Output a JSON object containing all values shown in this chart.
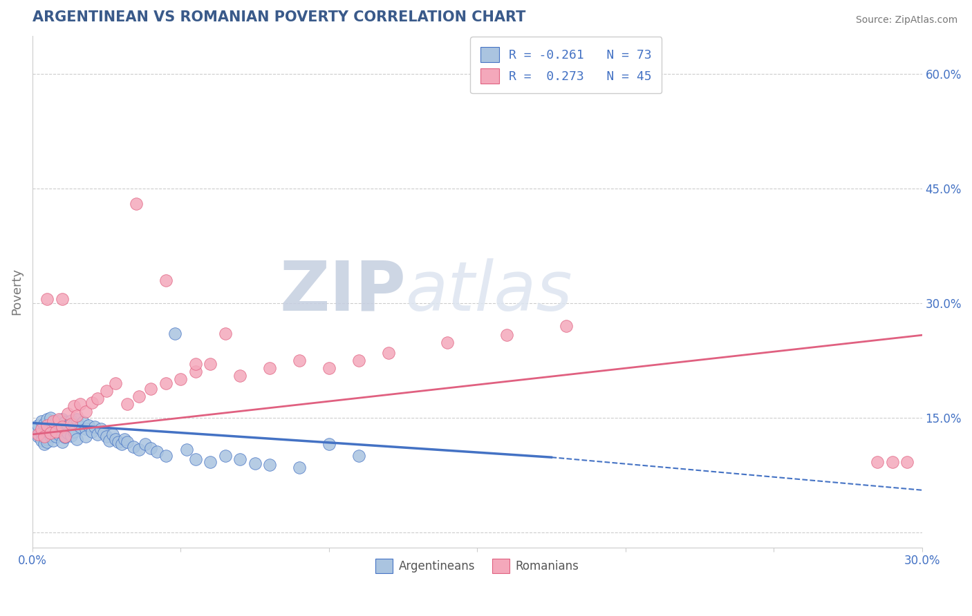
{
  "title": "ARGENTINEAN VS ROMANIAN POVERTY CORRELATION CHART",
  "source_text": "Source: ZipAtlas.com",
  "ylabel": "Poverty",
  "xlim": [
    0.0,
    0.3
  ],
  "ylim": [
    -0.02,
    0.65
  ],
  "xticks": [
    0.0,
    0.05,
    0.1,
    0.15,
    0.2,
    0.25,
    0.3
  ],
  "xtick_labels": [
    "0.0%",
    "",
    "",
    "",
    "",
    "",
    "30.0%"
  ],
  "ytick_right_vals": [
    0.0,
    0.15,
    0.3,
    0.45,
    0.6
  ],
  "ytick_right_labels": [
    "",
    "15.0%",
    "30.0%",
    "45.0%",
    "60.0%"
  ],
  "legend_text_blue": "R = -0.261   N = 73",
  "legend_text_pink": "R =  0.273   N = 45",
  "blue_color": "#aac4e0",
  "pink_color": "#f4a8bb",
  "blue_line_color": "#4472c4",
  "pink_line_color": "#e06080",
  "title_color": "#3a5a8a",
  "axis_label_color": "#777777",
  "tick_color": "#4472c4",
  "grid_color": "#cccccc",
  "watermark_color": "#dde3ee",
  "blue_R": -0.261,
  "blue_N": 73,
  "pink_R": 0.273,
  "pink_N": 45,
  "blue_scatter_x": [
    0.001,
    0.002,
    0.002,
    0.003,
    0.003,
    0.003,
    0.004,
    0.004,
    0.004,
    0.004,
    0.005,
    0.005,
    0.005,
    0.005,
    0.006,
    0.006,
    0.006,
    0.007,
    0.007,
    0.007,
    0.008,
    0.008,
    0.008,
    0.009,
    0.009,
    0.01,
    0.01,
    0.01,
    0.011,
    0.011,
    0.012,
    0.012,
    0.013,
    0.013,
    0.014,
    0.014,
    0.015,
    0.015,
    0.016,
    0.017,
    0.018,
    0.018,
    0.019,
    0.02,
    0.021,
    0.022,
    0.023,
    0.024,
    0.025,
    0.026,
    0.027,
    0.028,
    0.029,
    0.03,
    0.031,
    0.032,
    0.034,
    0.036,
    0.038,
    0.04,
    0.042,
    0.045,
    0.048,
    0.052,
    0.055,
    0.06,
    0.065,
    0.07,
    0.075,
    0.08,
    0.09,
    0.1,
    0.11
  ],
  "blue_scatter_y": [
    0.135,
    0.14,
    0.125,
    0.13,
    0.145,
    0.12,
    0.138,
    0.128,
    0.142,
    0.115,
    0.132,
    0.148,
    0.122,
    0.118,
    0.136,
    0.126,
    0.15,
    0.14,
    0.13,
    0.12,
    0.145,
    0.135,
    0.125,
    0.142,
    0.128,
    0.138,
    0.148,
    0.118,
    0.144,
    0.124,
    0.14,
    0.13,
    0.146,
    0.126,
    0.142,
    0.132,
    0.148,
    0.122,
    0.138,
    0.144,
    0.135,
    0.125,
    0.14,
    0.132,
    0.138,
    0.128,
    0.135,
    0.13,
    0.125,
    0.12,
    0.128,
    0.122,
    0.118,
    0.115,
    0.122,
    0.118,
    0.112,
    0.108,
    0.115,
    0.11,
    0.105,
    0.1,
    0.26,
    0.108,
    0.095,
    0.092,
    0.1,
    0.095,
    0.09,
    0.088,
    0.085,
    0.115,
    0.1
  ],
  "pink_scatter_x": [
    0.002,
    0.003,
    0.004,
    0.005,
    0.006,
    0.007,
    0.008,
    0.009,
    0.01,
    0.011,
    0.012,
    0.013,
    0.014,
    0.015,
    0.016,
    0.018,
    0.02,
    0.022,
    0.025,
    0.028,
    0.032,
    0.036,
    0.04,
    0.045,
    0.05,
    0.055,
    0.06,
    0.07,
    0.08,
    0.09,
    0.1,
    0.11,
    0.12,
    0.14,
    0.16,
    0.18,
    0.035,
    0.045,
    0.055,
    0.065,
    0.005,
    0.01,
    0.285,
    0.29,
    0.295
  ],
  "pink_scatter_y": [
    0.128,
    0.135,
    0.125,
    0.14,
    0.13,
    0.145,
    0.132,
    0.148,
    0.138,
    0.125,
    0.155,
    0.142,
    0.165,
    0.152,
    0.168,
    0.158,
    0.17,
    0.175,
    0.185,
    0.195,
    0.168,
    0.178,
    0.188,
    0.195,
    0.2,
    0.21,
    0.22,
    0.205,
    0.215,
    0.225,
    0.215,
    0.225,
    0.235,
    0.248,
    0.258,
    0.27,
    0.43,
    0.33,
    0.22,
    0.26,
    0.305,
    0.305,
    0.092,
    0.092,
    0.092
  ],
  "blue_line_x0": 0.0,
  "blue_line_x_solid_end": 0.175,
  "blue_line_x_dashed_end": 0.3,
  "blue_line_y0": 0.143,
  "blue_line_y_solid_end": 0.098,
  "blue_line_y_dashed_end": 0.055,
  "pink_line_x0": 0.0,
  "pink_line_x_end": 0.3,
  "pink_line_y0": 0.128,
  "pink_line_y_end": 0.258
}
